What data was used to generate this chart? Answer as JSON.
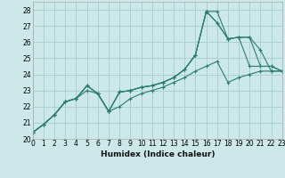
{
  "xlabel": "Humidex (Indice chaleur)",
  "background_color": "#cce8e8",
  "grid_color": "#aad0d0",
  "line_color": "#2d7d6e",
  "xlim": [
    0,
    23
  ],
  "ylim": [
    20,
    28.5
  ],
  "xticks": [
    0,
    1,
    2,
    3,
    4,
    5,
    6,
    7,
    8,
    9,
    10,
    11,
    12,
    13,
    14,
    15,
    16,
    17,
    18,
    19,
    20,
    21,
    22,
    23
  ],
  "yticks": [
    20,
    21,
    22,
    23,
    24,
    25,
    26,
    27,
    28
  ],
  "series": [
    {
      "x": [
        0,
        1,
        2,
        3,
        4,
        5,
        6,
        7,
        8,
        9,
        10,
        11,
        12,
        13,
        14,
        15,
        16,
        17,
        18,
        19,
        20,
        21,
        22,
        23
      ],
      "y": [
        20.4,
        20.9,
        21.5,
        22.3,
        22.5,
        23.3,
        22.8,
        21.7,
        22.9,
        23.0,
        23.2,
        23.3,
        23.5,
        23.8,
        24.3,
        25.2,
        27.9,
        27.9,
        26.2,
        26.3,
        26.3,
        25.5,
        24.2,
        24.2
      ]
    },
    {
      "x": [
        0,
        1,
        2,
        3,
        4,
        5,
        6,
        7,
        8,
        9,
        10,
        11,
        12,
        13,
        14,
        15,
        16,
        17,
        18,
        19,
        20,
        21,
        22,
        23
      ],
      "y": [
        20.4,
        20.9,
        21.5,
        22.3,
        22.5,
        23.3,
        22.8,
        21.7,
        22.9,
        23.0,
        23.2,
        23.3,
        23.5,
        23.8,
        24.3,
        25.2,
        27.9,
        27.2,
        26.2,
        26.3,
        26.3,
        24.5,
        24.5,
        24.2
      ]
    },
    {
      "x": [
        0,
        1,
        2,
        3,
        4,
        5,
        6,
        7,
        8,
        9,
        10,
        11,
        12,
        13,
        14,
        15,
        16,
        17,
        18,
        19,
        20,
        21,
        22,
        23
      ],
      "y": [
        20.4,
        20.9,
        21.5,
        22.3,
        22.5,
        23.3,
        22.8,
        21.7,
        22.9,
        23.0,
        23.2,
        23.3,
        23.5,
        23.8,
        24.3,
        25.2,
        27.9,
        27.2,
        26.2,
        26.3,
        24.5,
        24.5,
        24.5,
        24.2
      ]
    },
    {
      "x": [
        0,
        1,
        2,
        3,
        4,
        5,
        6,
        7,
        8,
        9,
        10,
        11,
        12,
        13,
        14,
        15,
        16,
        17,
        18,
        19,
        20,
        21,
        22,
        23
      ],
      "y": [
        20.4,
        20.9,
        21.5,
        22.3,
        22.5,
        23.0,
        22.8,
        21.7,
        22.0,
        22.5,
        22.8,
        23.0,
        23.2,
        23.5,
        23.8,
        24.2,
        24.5,
        24.8,
        23.5,
        23.8,
        24.0,
        24.2,
        24.2,
        24.2
      ]
    }
  ],
  "marker": "+",
  "markersize": 3,
  "linewidth": 0.8,
  "xlabel_fontsize": 6.5,
  "tick_fontsize": 5.5
}
